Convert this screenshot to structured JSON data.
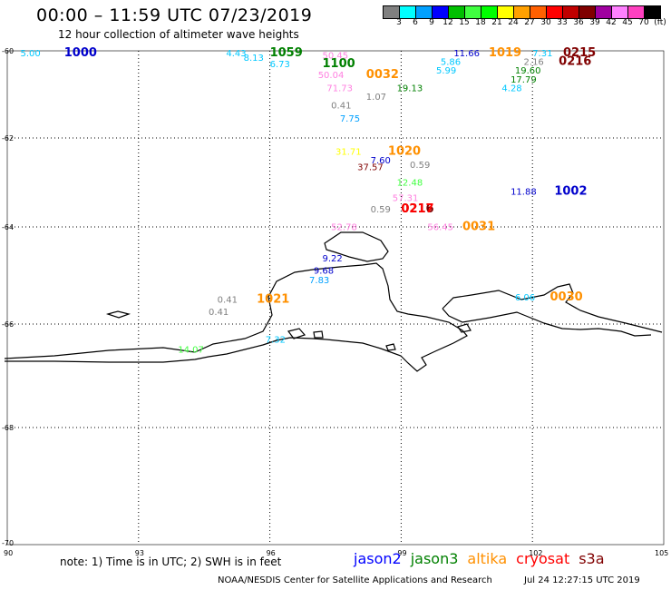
{
  "title": "00:00 – 11:59 UTC 07/23/2019",
  "subtitle": "12 hour collection of altimeter wave heights",
  "legend": {
    "colors": [
      "#808080",
      "#00ffff",
      "#00a0ff",
      "#0000ff",
      "#00c000",
      "#40ff40",
      "#00ff00",
      "#ffff00",
      "#ffa000",
      "#ff6000",
      "#ff0000",
      "#c00000",
      "#800000",
      "#a000a0",
      "#ff80ff",
      "#ff40c0",
      "#000000"
    ],
    "labels": [
      "3",
      "6",
      "9",
      "12",
      "15",
      "18",
      "21",
      "24",
      "27",
      "30",
      "33",
      "36",
      "39",
      "42",
      "45",
      "70",
      "(ft)"
    ]
  },
  "axes": {
    "lon_ticks": [
      "90",
      "93",
      "96",
      "99",
      "102",
      "105"
    ],
    "lat_ticks": [
      "-60",
      "-62",
      "-64",
      "-66",
      "-68",
      "-70"
    ]
  },
  "observations": [
    {
      "text": "5.00",
      "lon": 90.3,
      "lat": -60.0,
      "color": "#00c8ff",
      "bold": false
    },
    {
      "text": "1000",
      "lon": 91.3,
      "lat": -60.0,
      "color": "#0000cc",
      "bold": true
    },
    {
      "text": "4.43",
      "lon": 95.0,
      "lat": -60.0,
      "color": "#00c8ff",
      "bold": false
    },
    {
      "text": "1059",
      "lon": 96.0,
      "lat": -60.0,
      "color": "#008000",
      "bold": true
    },
    {
      "text": "50.45",
      "lon": 97.2,
      "lat": -60.05,
      "color": "#ff80e0",
      "bold": false
    },
    {
      "text": "8.13",
      "lon": 95.4,
      "lat": -60.1,
      "color": "#00c8ff",
      "bold": false
    },
    {
      "text": "6.73",
      "lon": 96.0,
      "lat": -60.25,
      "color": "#00c8ff",
      "bold": false
    },
    {
      "text": "1100",
      "lon": 97.2,
      "lat": -60.25,
      "color": "#008000",
      "bold": true
    },
    {
      "text": "50.04",
      "lon": 97.1,
      "lat": -60.5,
      "color": "#ff80e0",
      "bold": false
    },
    {
      "text": "0032",
      "lon": 98.2,
      "lat": -60.5,
      "color": "#ff9000",
      "bold": true
    },
    {
      "text": "71.73",
      "lon": 97.3,
      "lat": -60.8,
      "color": "#ff80e0",
      "bold": false
    },
    {
      "text": "1.07",
      "lon": 98.2,
      "lat": -61.0,
      "color": "#808080",
      "bold": false
    },
    {
      "text": "19.13",
      "lon": 98.9,
      "lat": -60.8,
      "color": "#008000",
      "bold": false
    },
    {
      "text": "0.41",
      "lon": 97.4,
      "lat": -61.2,
      "color": "#808080",
      "bold": false
    },
    {
      "text": "7.75",
      "lon": 97.6,
      "lat": -61.5,
      "color": "#00a0ff",
      "bold": false
    },
    {
      "text": "11.66",
      "lon": 100.2,
      "lat": -60.0,
      "color": "#0000cc",
      "bold": false
    },
    {
      "text": "1019",
      "lon": 101.0,
      "lat": -60.0,
      "color": "#ff9000",
      "bold": true
    },
    {
      "text": "7.31",
      "lon": 102.0,
      "lat": -60.0,
      "color": "#00c8ff",
      "bold": false
    },
    {
      "text": "0215",
      "lon": 102.7,
      "lat": -60.0,
      "color": "#800000",
      "bold": true
    },
    {
      "text": "5.86",
      "lon": 99.9,
      "lat": -60.2,
      "color": "#00c8ff",
      "bold": false
    },
    {
      "text": "2.16",
      "lon": 101.8,
      "lat": -60.2,
      "color": "#808080",
      "bold": false
    },
    {
      "text": "0216",
      "lon": 102.6,
      "lat": -60.2,
      "color": "#800000",
      "bold": true
    },
    {
      "text": "5.99",
      "lon": 99.8,
      "lat": -60.4,
      "color": "#00c8ff",
      "bold": false
    },
    {
      "text": "19.60",
      "lon": 101.6,
      "lat": -60.4,
      "color": "#008000",
      "bold": false
    },
    {
      "text": "17.79",
      "lon": 101.5,
      "lat": -60.6,
      "color": "#008000",
      "bold": false
    },
    {
      "text": "4.28",
      "lon": 101.3,
      "lat": -60.8,
      "color": "#00c8ff",
      "bold": false
    },
    {
      "text": "31.71",
      "lon": 97.5,
      "lat": -62.25,
      "color": "#ffff00",
      "bold": false
    },
    {
      "text": "1020",
      "lon": 98.7,
      "lat": -62.25,
      "color": "#ff9000",
      "bold": true
    },
    {
      "text": "7.60",
      "lon": 98.3,
      "lat": -62.45,
      "color": "#0000cc",
      "bold": false
    },
    {
      "text": "37.57",
      "lon": 98.0,
      "lat": -62.6,
      "color": "#800000",
      "bold": false
    },
    {
      "text": "0.59",
      "lon": 99.2,
      "lat": -62.55,
      "color": "#808080",
      "bold": false
    },
    {
      "text": "12.48",
      "lon": 98.9,
      "lat": -62.95,
      "color": "#40ff40",
      "bold": false
    },
    {
      "text": "57.31",
      "lon": 98.8,
      "lat": -63.3,
      "color": "#ff80e0",
      "bold": false
    },
    {
      "text": "0.59",
      "lon": 98.3,
      "lat": -63.55,
      "color": "#808080",
      "bold": false
    },
    {
      "text": "0216",
      "lon": 99.0,
      "lat": -63.55,
      "color": "#800000",
      "bold": true
    },
    {
      "text": "0217",
      "lon": 99.0,
      "lat": -63.55,
      "color": "#ff0000",
      "bold": true
    },
    {
      "text": "11.88",
      "lon": 101.5,
      "lat": -63.15,
      "color": "#0000cc",
      "bold": false
    },
    {
      "text": "1002",
      "lon": 102.5,
      "lat": -63.15,
      "color": "#0000cc",
      "bold": true
    },
    {
      "text": "52.78",
      "lon": 97.4,
      "lat": -63.95,
      "color": "#ff80e0",
      "bold": false
    },
    {
      "text": "56.45",
      "lon": 99.6,
      "lat": -63.95,
      "color": "#ff80e0",
      "bold": false
    },
    {
      "text": "0031",
      "lon": 100.4,
      "lat": -63.95,
      "color": "#ff9000",
      "bold": true
    },
    {
      "text": "9.22",
      "lon": 97.2,
      "lat": -64.6,
      "color": "#0000cc",
      "bold": false
    },
    {
      "text": "9.68",
      "lon": 97.0,
      "lat": -64.85,
      "color": "#0000cc",
      "bold": false
    },
    {
      "text": "7.83",
      "lon": 96.9,
      "lat": -65.05,
      "color": "#00a0ff",
      "bold": false
    },
    {
      "text": "0.41",
      "lon": 94.8,
      "lat": -65.45,
      "color": "#808080",
      "bold": false
    },
    {
      "text": "1021",
      "lon": 95.7,
      "lat": -65.45,
      "color": "#ff9000",
      "bold": true
    },
    {
      "text": "0.41",
      "lon": 94.6,
      "lat": -65.7,
      "color": "#808080",
      "bold": false
    },
    {
      "text": "6.06",
      "lon": 101.6,
      "lat": -65.4,
      "color": "#00c8ff",
      "bold": false
    },
    {
      "text": "0030",
      "lon": 102.4,
      "lat": -65.4,
      "color": "#ff9000",
      "bold": true
    },
    {
      "text": "7.32",
      "lon": 95.9,
      "lat": -66.25,
      "color": "#00c8ff",
      "bold": false
    },
    {
      "text": "14.07",
      "lon": 93.9,
      "lat": -66.45,
      "color": "#40ff40",
      "bold": false
    }
  ],
  "note": "note: 1) Time is in UTC; 2) SWH is in feet",
  "satellites": [
    {
      "name": "jason2",
      "color": "#0000ff"
    },
    {
      "name": "jason3",
      "color": "#008000"
    },
    {
      "name": "altika",
      "color": "#ff9000"
    },
    {
      "name": "cryosat",
      "color": "#ff0000"
    },
    {
      "name": "s3a",
      "color": "#800000"
    }
  ],
  "credit": "NOAA/NESDIS Center for Satellite Applications and Research",
  "timestamp": "Jul 24 12:27:15 UTC 2019"
}
